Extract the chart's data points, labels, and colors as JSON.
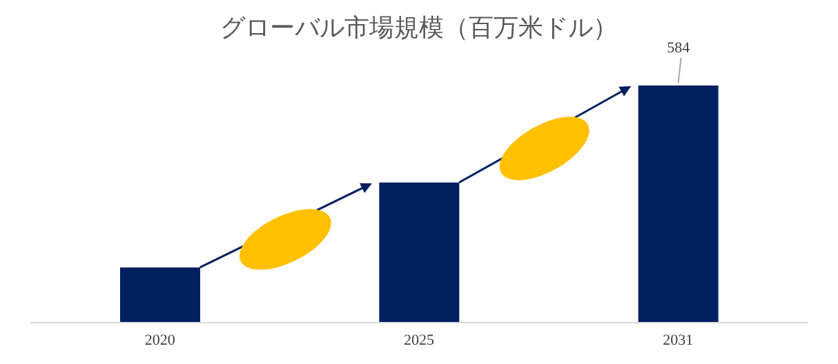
{
  "chart_data": {
    "type": "bar",
    "title": "グローバル市場規模（百万米ドル）",
    "categories": [
      "2020",
      "2025",
      "2031"
    ],
    "values": [
      136,
      345,
      584
    ],
    "value_labels": [
      null,
      null,
      "584"
    ],
    "color": "#002060"
  }
}
